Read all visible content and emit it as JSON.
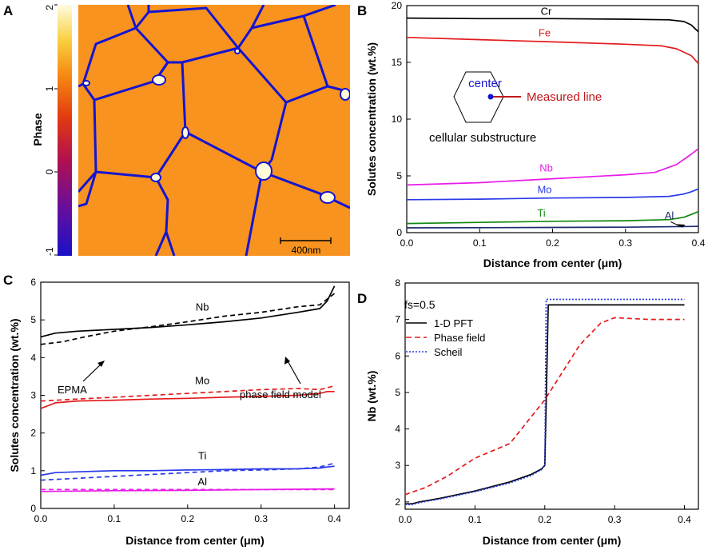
{
  "panels": {
    "A": {
      "label": "A",
      "colorbar": {
        "label": "Phase",
        "ticks": [
          "2",
          "1",
          "0",
          "-1"
        ]
      },
      "scale_bar": "400nm",
      "colors": {
        "grain": "#F7931E",
        "boundary": "#1414D2",
        "particle": "#FFFBD9"
      }
    },
    "B": {
      "label": "B"
    },
    "C": {
      "label": "C"
    },
    "D": {
      "label": "D"
    }
  },
  "chart_data": [
    {
      "id": "B",
      "type": "line",
      "xlabel": "Distance from center (μm)",
      "ylabel": "Solutes concentration (wt.%)",
      "xlim": [
        0,
        0.4
      ],
      "ylim": [
        0,
        20
      ],
      "xticks": [
        0.0,
        0.1,
        0.2,
        0.3,
        0.4
      ],
      "xtick_labels": [
        "0.0",
        "0.1",
        "0.2",
        "0.3",
        "0.4"
      ],
      "yticks": [
        0,
        5,
        10,
        15,
        20
      ],
      "ytick_labels": [
        "0",
        "5",
        "10",
        "15",
        "20"
      ],
      "inset": {
        "center_label": "center",
        "line_label": "Measured line",
        "caption": "cellular substructure"
      },
      "series": [
        {
          "name": "Cr",
          "color": "#000000",
          "label_pos": [
            0.2,
            19.2
          ],
          "x": [
            0,
            0.1,
            0.2,
            0.3,
            0.36,
            0.38,
            0.39,
            0.4
          ],
          "y": [
            18.9,
            18.85,
            18.85,
            18.8,
            18.75,
            18.6,
            18.3,
            17.7
          ]
        },
        {
          "name": "Fe",
          "color": "#E41A1C",
          "label_pos": [
            0.2,
            17.3
          ],
          "x": [
            0,
            0.1,
            0.2,
            0.3,
            0.35,
            0.37,
            0.39,
            0.4
          ],
          "y": [
            17.2,
            17.0,
            16.8,
            16.6,
            16.45,
            16.2,
            15.6,
            14.9
          ],
          "label_y_offset": 17.3
        },
        {
          "name": "Nb",
          "color": "#E81BE8",
          "label_pos": [
            0.2,
            5.4
          ],
          "x": [
            0,
            0.1,
            0.2,
            0.3,
            0.34,
            0.37,
            0.39,
            0.4
          ],
          "y": [
            4.2,
            4.4,
            4.75,
            5.1,
            5.3,
            6.0,
            6.9,
            7.4
          ]
        },
        {
          "name": "Mo",
          "color": "#2A3BE8",
          "label_pos": [
            0.2,
            3.5
          ],
          "x": [
            0,
            0.1,
            0.2,
            0.3,
            0.36,
            0.38,
            0.39,
            0.4
          ],
          "y": [
            2.9,
            2.95,
            3.05,
            3.1,
            3.2,
            3.4,
            3.6,
            3.85
          ]
        },
        {
          "name": "Ti",
          "color": "#118811",
          "label_pos": [
            0.2,
            1.4
          ],
          "x": [
            0,
            0.1,
            0.2,
            0.3,
            0.36,
            0.38,
            0.39,
            0.4
          ],
          "y": [
            0.8,
            0.9,
            1.0,
            1.05,
            1.15,
            1.35,
            1.6,
            1.85
          ]
        },
        {
          "name": "Al",
          "color": "#1C2A6E",
          "label_pos": [
            0.36,
            1.2
          ],
          "x": [
            0,
            0.1,
            0.2,
            0.3,
            0.4
          ],
          "y": [
            0.42,
            0.44,
            0.46,
            0.48,
            0.55
          ]
        }
      ]
    },
    {
      "id": "C",
      "type": "line",
      "xlabel": "Distance from center (μm)",
      "ylabel": "Solutes concentration (wt.%)",
      "xlim": [
        0,
        0.42
      ],
      "ylim": [
        0,
        6
      ],
      "xticks": [
        0.0,
        0.1,
        0.2,
        0.3,
        0.4
      ],
      "xtick_labels": [
        "0.0",
        "0.1",
        "0.2",
        "0.3",
        "0.4"
      ],
      "yticks": [
        0,
        1,
        2,
        3,
        4,
        5,
        6
      ],
      "ytick_labels": [
        "0",
        "1",
        "2",
        "3",
        "4",
        "5",
        "6"
      ],
      "annotations": [
        "EPMA",
        "phase field model"
      ],
      "element_labels": [
        {
          "text": "Nb",
          "x": 0.22,
          "y": 5.25
        },
        {
          "text": "Mo",
          "x": 0.22,
          "y": 3.3
        },
        {
          "text": "Ti",
          "x": 0.22,
          "y": 1.3
        },
        {
          "text": "Al",
          "x": 0.22,
          "y": 0.62
        }
      ],
      "series": [
        {
          "name": "Nb phase field model",
          "color": "#000000",
          "dash": "solid",
          "x": [
            0,
            0.02,
            0.05,
            0.1,
            0.15,
            0.2,
            0.25,
            0.3,
            0.35,
            0.38,
            0.39,
            0.4
          ],
          "y": [
            4.55,
            4.65,
            4.7,
            4.75,
            4.8,
            4.87,
            4.95,
            5.05,
            5.2,
            5.3,
            5.5,
            5.9
          ]
        },
        {
          "name": "Nb EPMA",
          "color": "#000000",
          "dash": "dashed",
          "x": [
            0,
            0.03,
            0.06,
            0.1,
            0.15,
            0.2,
            0.25,
            0.3,
            0.35,
            0.38,
            0.39,
            0.4
          ],
          "y": [
            4.35,
            4.42,
            4.55,
            4.7,
            4.82,
            4.95,
            5.1,
            5.2,
            5.35,
            5.4,
            5.55,
            5.7
          ]
        },
        {
          "name": "Mo phase field model",
          "color": "#E41A1C",
          "dash": "solid",
          "x": [
            0,
            0.02,
            0.05,
            0.1,
            0.15,
            0.2,
            0.25,
            0.3,
            0.35,
            0.38,
            0.39,
            0.4
          ],
          "y": [
            2.65,
            2.8,
            2.85,
            2.87,
            2.9,
            2.92,
            2.95,
            2.97,
            3.0,
            3.05,
            3.1,
            3.1
          ]
        },
        {
          "name": "Mo EPMA",
          "color": "#E41A1C",
          "dash": "dashed",
          "x": [
            0,
            0.05,
            0.1,
            0.15,
            0.2,
            0.25,
            0.3,
            0.35,
            0.38,
            0.4
          ],
          "y": [
            2.85,
            2.9,
            2.95,
            3.0,
            3.05,
            3.1,
            3.15,
            3.18,
            3.15,
            3.25
          ]
        },
        {
          "name": "Ti phase field model",
          "color": "#2A3BE8",
          "dash": "solid",
          "x": [
            0,
            0.02,
            0.05,
            0.1,
            0.15,
            0.2,
            0.25,
            0.3,
            0.35,
            0.38,
            0.39,
            0.4
          ],
          "y": [
            0.88,
            0.95,
            0.97,
            1.0,
            1.0,
            1.02,
            1.03,
            1.05,
            1.05,
            1.07,
            1.1,
            1.12
          ]
        },
        {
          "name": "Ti EPMA",
          "color": "#2A3BE8",
          "dash": "dashed",
          "x": [
            0,
            0.05,
            0.1,
            0.15,
            0.2,
            0.25,
            0.3,
            0.35,
            0.38,
            0.4
          ],
          "y": [
            0.75,
            0.8,
            0.85,
            0.9,
            0.95,
            1.0,
            1.02,
            1.05,
            1.1,
            1.2
          ]
        },
        {
          "name": "Al phase field model",
          "color": "#E81BE8",
          "dash": "solid",
          "x": [
            0,
            0.1,
            0.2,
            0.3,
            0.4
          ],
          "y": [
            0.45,
            0.47,
            0.48,
            0.5,
            0.52
          ]
        },
        {
          "name": "Al EPMA",
          "color": "#E81BE8",
          "dash": "dashed",
          "x": [
            0,
            0.1,
            0.2,
            0.3,
            0.4
          ],
          "y": [
            0.5,
            0.5,
            0.5,
            0.5,
            0.5
          ]
        }
      ]
    },
    {
      "id": "D",
      "type": "line",
      "xlabel": "Distance from center (μm)",
      "ylabel": "Nb (wt.%)",
      "xlim": [
        0,
        0.42
      ],
      "ylim": [
        1.8,
        8
      ],
      "xticks": [
        0.0,
        0.1,
        0.2,
        0.3,
        0.4
      ],
      "xtick_labels": [
        "0.0",
        "0.1",
        "0.2",
        "0.3",
        "0.4"
      ],
      "yticks": [
        2,
        3,
        4,
        5,
        6,
        7,
        8
      ],
      "ytick_labels": [
        "2",
        "3",
        "4",
        "5",
        "6",
        "7",
        "8"
      ],
      "legend_title": "fs=0.5",
      "legend_position": "top-left",
      "series": [
        {
          "name": "1-D PFT",
          "color": "#000000",
          "dash": "solid",
          "x": [
            0,
            0.01,
            0.02,
            0.05,
            0.1,
            0.15,
            0.18,
            0.195,
            0.2,
            0.205,
            0.25,
            0.3,
            0.35,
            0.4
          ],
          "y": [
            1.95,
            1.95,
            2.0,
            2.1,
            2.3,
            2.55,
            2.75,
            2.9,
            3.0,
            7.4,
            7.4,
            7.4,
            7.4,
            7.4
          ]
        },
        {
          "name": "Phase field",
          "color": "#E41A1C",
          "dash": "dashed",
          "x": [
            0,
            0.03,
            0.06,
            0.1,
            0.15,
            0.2,
            0.25,
            0.28,
            0.3,
            0.35,
            0.4
          ],
          "y": [
            2.2,
            2.4,
            2.7,
            3.2,
            3.6,
            4.8,
            6.3,
            6.9,
            7.05,
            7.0,
            7.0
          ]
        },
        {
          "name": "Scheil",
          "color": "#2A3BE8",
          "dash": "dotted",
          "x": [
            0,
            0.01,
            0.02,
            0.05,
            0.1,
            0.15,
            0.18,
            0.195,
            0.2,
            0.202,
            0.25,
            0.3,
            0.35,
            0.4
          ],
          "y": [
            1.93,
            1.93,
            1.98,
            2.08,
            2.28,
            2.52,
            2.72,
            2.88,
            3.0,
            7.55,
            7.55,
            7.55,
            7.55,
            7.55
          ]
        }
      ]
    }
  ]
}
